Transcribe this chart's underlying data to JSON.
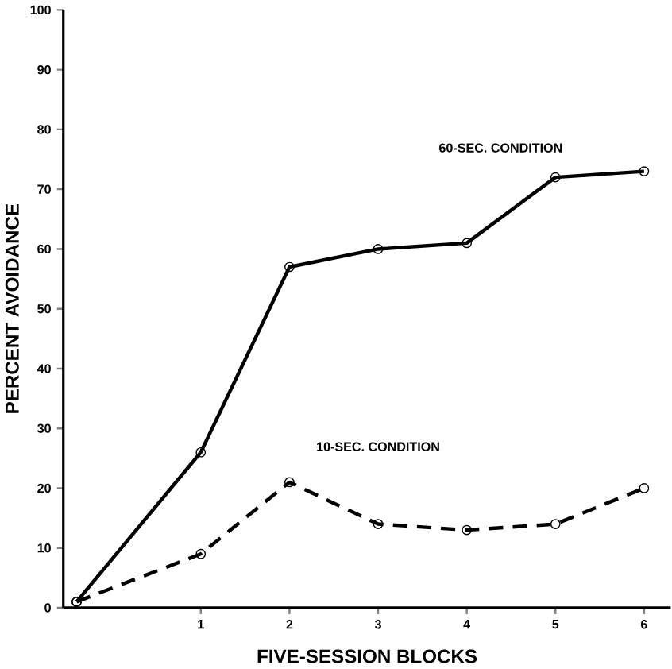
{
  "chart_data": {
    "type": "line",
    "xlabel": "FIVE-SESSION BLOCKS",
    "ylabel": "PERCENT AVOIDANCE",
    "xlim": [
      -0.55,
      6.3
    ],
    "ylim": [
      0,
      100
    ],
    "xticks": [
      1,
      2,
      3,
      4,
      5,
      6
    ],
    "yticks": [
      0,
      10,
      20,
      30,
      40,
      50,
      60,
      70,
      80,
      90,
      100
    ],
    "marker": "circle",
    "grid": false,
    "series": [
      {
        "name": "60-SEC. CONDITION",
        "color": "#000000",
        "line_style": "solid",
        "x": [
          -0.4,
          1,
          2,
          3,
          4,
          5,
          6
        ],
        "values": [
          1,
          26,
          57,
          60,
          61,
          72,
          73
        ]
      },
      {
        "name": "10-SEC. CONDITION",
        "color": "#000000",
        "line_style": "dashed",
        "x": [
          -0.4,
          1,
          2,
          3,
          4,
          5,
          6
        ],
        "values": [
          1,
          9,
          21,
          14,
          13,
          14,
          20
        ]
      }
    ]
  }
}
